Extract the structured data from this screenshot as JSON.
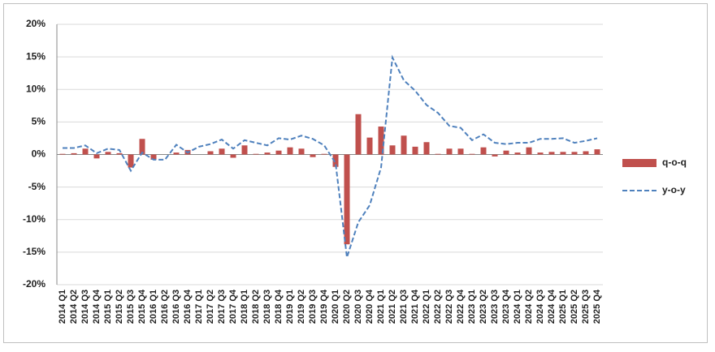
{
  "chart_data": {
    "type": "bar-line",
    "categories": [
      "2014 Q1",
      "2014 Q2",
      "2014 Q3",
      "2014 Q4",
      "2015 Q1",
      "2015 Q2",
      "2015 Q3",
      "2015 Q4",
      "2016 Q1",
      "2016 Q2",
      "2016 Q3",
      "2016 Q4",
      "2017 Q1",
      "2017 Q2",
      "2017 Q3",
      "2017 Q4",
      "2018 Q1",
      "2018 Q2",
      "2018 Q3",
      "2018 Q4",
      "2019 Q1",
      "2019 Q2",
      "2019 Q3",
      "2019 Q4",
      "2020 Q1",
      "2020 Q2",
      "2020 Q3",
      "2020 Q4",
      "2021 Q1",
      "2021 Q2",
      "2021 Q3",
      "2021 Q4",
      "2022 Q1",
      "2022 Q2",
      "2022 Q3",
      "2022 Q4",
      "2023 Q1",
      "2023 Q2",
      "2023 Q3",
      "2023 Q4",
      "2024 Q1",
      "2024 Q2",
      "2024 Q3",
      "2024 Q4",
      "2025 Q1",
      "2025 Q2",
      "2025 Q3",
      "2025 Q4"
    ],
    "series": [
      {
        "name": "q-o-q",
        "type": "bar",
        "color": "#c0504d",
        "values": [
          0.1,
          0.2,
          0.9,
          -0.6,
          0.4,
          0.2,
          -2.0,
          2.4,
          -0.8,
          0.0,
          0.3,
          0.7,
          0.0,
          0.5,
          0.9,
          -0.5,
          1.4,
          0.1,
          0.3,
          0.6,
          1.1,
          0.9,
          -0.4,
          0.1,
          -1.9,
          -13.8,
          6.2,
          2.6,
          4.3,
          1.4,
          2.9,
          1.2,
          1.9,
          0.1,
          0.9,
          0.9,
          0.1,
          1.1,
          -0.3,
          0.6,
          0.3,
          1.1,
          0.3,
          0.4,
          0.4,
          0.4,
          0.5,
          0.8
        ]
      },
      {
        "name": "y-o-y",
        "type": "line",
        "color": "#4f81bd",
        "dashed": true,
        "values": [
          1.0,
          1.0,
          1.4,
          0.2,
          0.9,
          0.7,
          -2.5,
          0.3,
          -0.8,
          -0.8,
          1.5,
          0.3,
          1.2,
          1.6,
          2.3,
          0.9,
          2.2,
          1.8,
          1.4,
          2.5,
          2.3,
          2.9,
          2.4,
          1.4,
          -1.3,
          -15.8,
          -10.4,
          -7.8,
          -2.0,
          14.9,
          11.4,
          9.8,
          7.6,
          6.4,
          4.4,
          4.1,
          2.2,
          3.1,
          1.8,
          1.6,
          1.8,
          1.8,
          2.4,
          2.4,
          2.5,
          1.8,
          2.1,
          2.5
        ]
      }
    ],
    "ylim": [
      -20,
      20
    ],
    "yticks": [
      {
        "value": -20,
        "label": "-20%"
      },
      {
        "value": -15,
        "label": "-15%"
      },
      {
        "value": -10,
        "label": "-10%"
      },
      {
        "value": -5,
        "label": "-5%"
      },
      {
        "value": 0,
        "label": "0%"
      },
      {
        "value": 5,
        "label": "5%"
      },
      {
        "value": 10,
        "label": "10%"
      },
      {
        "value": 15,
        "label": "15%"
      },
      {
        "value": 20,
        "label": "20%"
      }
    ],
    "grid": true,
    "legend": "right"
  }
}
